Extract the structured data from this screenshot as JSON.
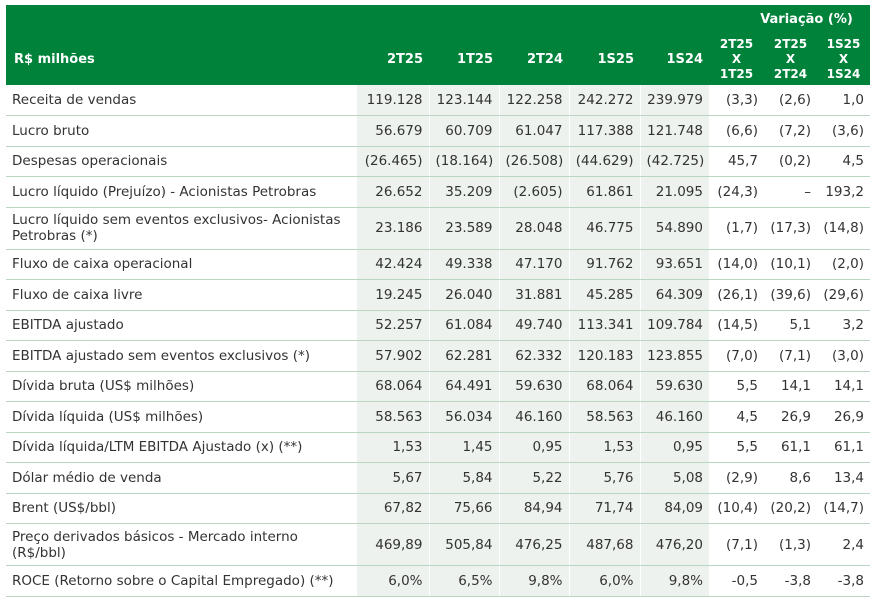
{
  "header": {
    "row_label": "R$ milhões",
    "variation_title": "Variação (%)",
    "columns": [
      "2T25",
      "1T25",
      "2T24",
      "1S25",
      "1S24"
    ],
    "variation_columns": [
      {
        "line1": "2T25 X",
        "line2": "1T25"
      },
      {
        "line1": "2T25 X",
        "line2": "2T24"
      },
      {
        "line1": "1S25 X",
        "line2": "1S24"
      }
    ]
  },
  "rows": [
    {
      "label": "Receita de vendas",
      "values": [
        "119.128",
        "123.144",
        "122.258",
        "242.272",
        "239.979"
      ],
      "variations": [
        "(3,3)",
        "(2,6)",
        "1,0"
      ]
    },
    {
      "label": "Lucro bruto",
      "values": [
        "56.679",
        "60.709",
        "61.047",
        "117.388",
        "121.748"
      ],
      "variations": [
        "(6,6)",
        "(7,2)",
        "(3,6)"
      ]
    },
    {
      "label": "Despesas operacionais",
      "values": [
        "(26.465)",
        "(18.164)",
        "(26.508)",
        "(44.629)",
        "(42.725)"
      ],
      "variations": [
        "45,7",
        "(0,2)",
        "4,5"
      ]
    },
    {
      "label": "Lucro líquido (Prejuízo) - Acionistas Petrobras",
      "values": [
        "26.652",
        "35.209",
        "(2.605)",
        "61.861",
        "21.095"
      ],
      "variations": [
        "(24,3)",
        "–",
        "193,2"
      ]
    },
    {
      "label": "Lucro líquido sem eventos exclusivos- Acionistas Petrobras (*)",
      "values": [
        "23.186",
        "23.589",
        "28.048",
        "46.775",
        "54.890"
      ],
      "variations": [
        "(1,7)",
        "(17,3)",
        "(14,8)"
      ],
      "tall": true
    },
    {
      "label": "Fluxo de caixa operacional",
      "values": [
        "42.424",
        "49.338",
        "47.170",
        "91.762",
        "93.651"
      ],
      "variations": [
        "(14,0)",
        "(10,1)",
        "(2,0)"
      ]
    },
    {
      "label": "Fluxo de caixa livre",
      "values": [
        "19.245",
        "26.040",
        "31.881",
        "45.285",
        "64.309"
      ],
      "variations": [
        "(26,1)",
        "(39,6)",
        "(29,6)"
      ]
    },
    {
      "label": "EBITDA ajustado",
      "values": [
        "52.257",
        "61.084",
        "49.740",
        "113.341",
        "109.784"
      ],
      "variations": [
        "(14,5)",
        "5,1",
        "3,2"
      ]
    },
    {
      "label": "EBITDA ajustado sem eventos exclusivos (*)",
      "values": [
        "57.902",
        "62.281",
        "62.332",
        "120.183",
        "123.855"
      ],
      "variations": [
        "(7,0)",
        "(7,1)",
        "(3,0)"
      ]
    },
    {
      "label": "Dívida bruta (US$ milhões)",
      "values": [
        "68.064",
        "64.491",
        "59.630",
        "68.064",
        "59.630"
      ],
      "variations": [
        "5,5",
        "14,1",
        "14,1"
      ]
    },
    {
      "label": "Dívida líquida (US$ milhões)",
      "values": [
        "58.563",
        "56.034",
        "46.160",
        "58.563",
        "46.160"
      ],
      "variations": [
        "4,5",
        "26,9",
        "26,9"
      ]
    },
    {
      "label": "Dívida líquida/LTM EBITDA Ajustado (x) (**)",
      "values": [
        "1,53",
        "1,45",
        "0,95",
        "1,53",
        "0,95"
      ],
      "variations": [
        "5,5",
        "61,1",
        "61,1"
      ]
    },
    {
      "label": "Dólar médio de venda",
      "values": [
        "5,67",
        "5,84",
        "5,22",
        "5,76",
        "5,08"
      ],
      "variations": [
        "(2,9)",
        "8,6",
        "13,4"
      ]
    },
    {
      "label": "Brent (US$/bbl)",
      "values": [
        "67,82",
        "75,66",
        "84,94",
        "71,74",
        "84,09"
      ],
      "variations": [
        "(10,4)",
        "(20,2)",
        "(14,7)"
      ]
    },
    {
      "label": "Preço derivados básicos - Mercado interno (R$/bbl)",
      "values": [
        "469,89",
        "505,84",
        "476,25",
        "487,68",
        "476,20"
      ],
      "variations": [
        "(7,1)",
        "(1,3)",
        "2,4"
      ],
      "tall": true
    },
    {
      "label": "ROCE (Retorno sobre o Capital Empregado) (**)",
      "values": [
        "6,0%",
        "6,5%",
        "9,8%",
        "6,0%",
        "9,8%"
      ],
      "variations": [
        "-0,5",
        "-3,8",
        "-3,8"
      ]
    }
  ],
  "colors": {
    "header_green": "#00823b",
    "value_cell_bg": "#eef2ef",
    "row_divider": "#b9d6c2"
  }
}
